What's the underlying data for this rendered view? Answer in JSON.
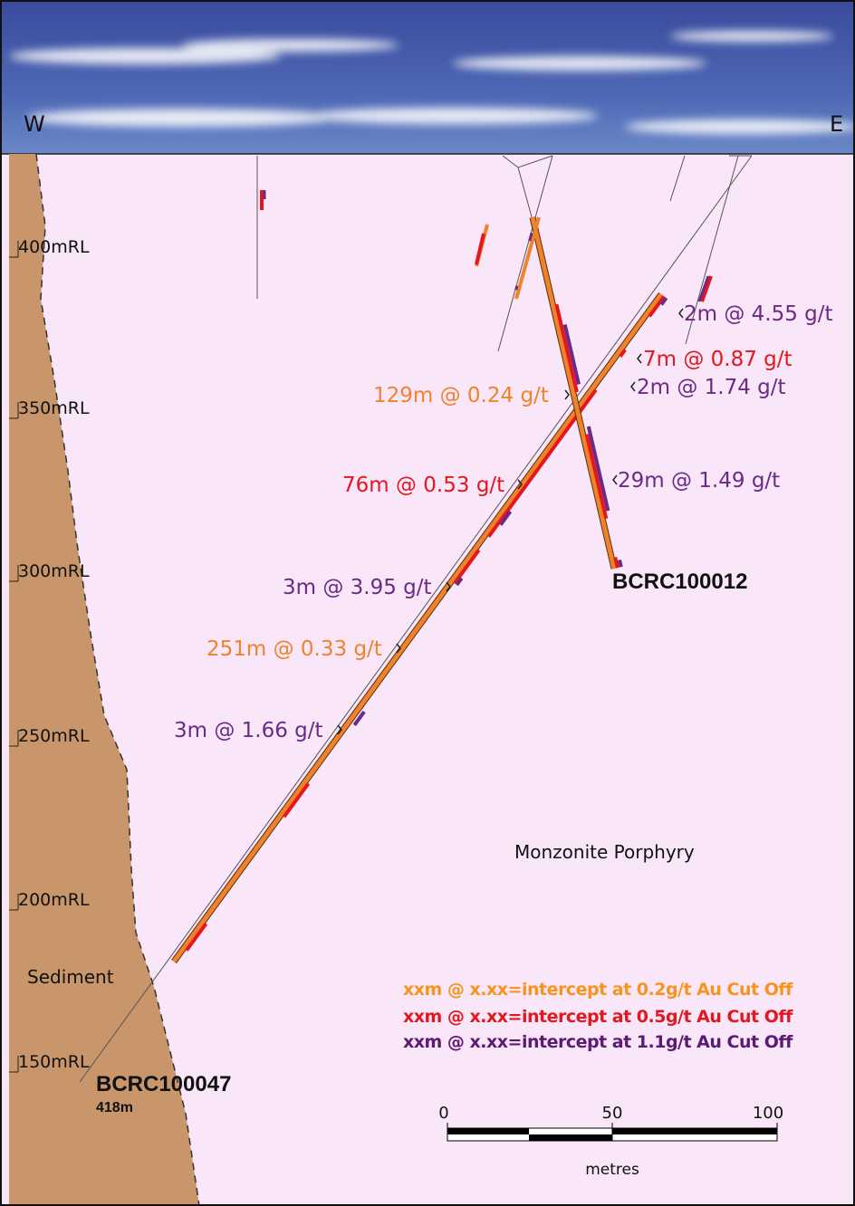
{
  "compass": {
    "west": "W",
    "east": "E"
  },
  "levels": [
    "400mRL",
    "350mRL",
    "300mRL",
    "250mRL",
    "200mRL",
    "150mRL"
  ],
  "annotations": [
    "2m @ 4.55 g/t",
    "7m @ 0.87 g/t",
    "2m @ 1.74 g/t",
    "129m @ 0.24 g/t",
    "29m @ 1.49 g/t",
    "76m @ 0.53 g/t",
    "3m @ 3.95 g/t",
    "251m @ 0.33 g/t",
    "3m @ 1.66 g/t"
  ],
  "holes": [
    {
      "name": "BCRC100012"
    },
    {
      "name": "BCRC100047",
      "depth": "418m"
    }
  ],
  "units": {
    "porphyry": "Monzonite Porphyry",
    "sediment": "Sediment"
  },
  "legend": [
    "xxm @ x.xx=intercept at 0.2g/t Au Cut Off",
    "xxm @ x.xx=intercept at 0.5g/t Au Cut Off",
    "xxm @ x.xx=intercept at 1.1g/t Au Cut Off"
  ],
  "scale_bar": {
    "labels": [
      "0",
      "50",
      "100"
    ],
    "unit": "metres"
  }
}
